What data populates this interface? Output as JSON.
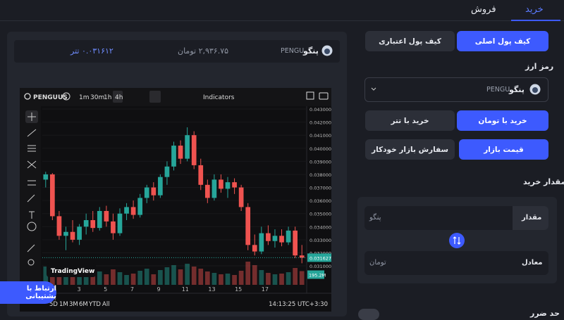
{
  "tabs": {
    "buy": "خرید",
    "sell": "فروش"
  },
  "market": {
    "symbol": "PENGU",
    "name": "پنگو",
    "price_toman": "۲,۹۳۶.۷۵ تومان",
    "price_tether": "۰.۰۳۱۶۱۲ تتر"
  },
  "chart": {
    "type": "candlestick",
    "ticker": "PENGUUS",
    "intervals": [
      "1m",
      "30m",
      "1h",
      "4h"
    ],
    "indicators": "Indicators",
    "brand": "TradingView",
    "ranges": [
      "5D",
      "1M",
      "3M",
      "6M",
      "YTD",
      "All"
    ],
    "clock": "14:13:25 UTC+3:30",
    "x_labels": [
      "3",
      "5",
      "7",
      "9",
      "11",
      "13",
      "15",
      "17"
    ],
    "ylim": [
      0.02955,
      0.04327
    ],
    "yticks": [
      {
        "value": 0.043,
        "label": "0.043000"
      },
      {
        "value": 0.042,
        "label": "0.042000"
      },
      {
        "value": 0.041,
        "label": "0.041000"
      },
      {
        "value": 0.04,
        "label": "0.040000"
      },
      {
        "value": 0.039,
        "label": "0.039000"
      },
      {
        "value": 0.038,
        "label": "0.038000"
      },
      {
        "value": 0.037,
        "label": "0.037000"
      },
      {
        "value": 0.036,
        "label": "0.036000"
      },
      {
        "value": 0.035,
        "label": "0.035000"
      },
      {
        "value": 0.034,
        "label": "0.034000"
      },
      {
        "value": 0.033,
        "label": "0.033000"
      },
      {
        "value": 0.032,
        "label": "0.032000"
      },
      {
        "value": 0.031,
        "label": "0.031000"
      }
    ],
    "up_color": "#26a69a",
    "down_color": "#ef5350",
    "candles": [
      [
        0.0376,
        0.0382,
        0.037,
        0.038
      ],
      [
        0.038,
        0.0381,
        0.0345,
        0.0348
      ],
      [
        0.0348,
        0.0352,
        0.033,
        0.0333
      ],
      [
        0.0333,
        0.034,
        0.0322,
        0.0336
      ],
      [
        0.0336,
        0.0345,
        0.0328,
        0.033
      ],
      [
        0.033,
        0.0342,
        0.0326,
        0.034
      ],
      [
        0.034,
        0.035,
        0.0334,
        0.0345
      ],
      [
        0.0345,
        0.0352,
        0.0336,
        0.0339
      ],
      [
        0.0339,
        0.0355,
        0.0337,
        0.0352
      ],
      [
        0.0352,
        0.0356,
        0.034,
        0.0344
      ],
      [
        0.0344,
        0.035,
        0.033,
        0.0335
      ],
      [
        0.0335,
        0.0354,
        0.0333,
        0.035
      ],
      [
        0.035,
        0.0358,
        0.0345,
        0.0355
      ],
      [
        0.0355,
        0.036,
        0.0346,
        0.0349
      ],
      [
        0.0349,
        0.0365,
        0.0347,
        0.0362
      ],
      [
        0.0362,
        0.0372,
        0.0358,
        0.037
      ],
      [
        0.037,
        0.0374,
        0.036,
        0.0364
      ],
      [
        0.0364,
        0.038,
        0.0362,
        0.0378
      ],
      [
        0.0378,
        0.039,
        0.0372,
        0.0386
      ],
      [
        0.0386,
        0.0405,
        0.0383,
        0.0402
      ],
      [
        0.0402,
        0.0406,
        0.0388,
        0.0392
      ],
      [
        0.0392,
        0.0416,
        0.039,
        0.041
      ],
      [
        0.041,
        0.0413,
        0.0384,
        0.0387
      ],
      [
        0.0387,
        0.0392,
        0.0368,
        0.0372
      ],
      [
        0.0372,
        0.0376,
        0.0358,
        0.0362
      ],
      [
        0.0362,
        0.038,
        0.036,
        0.0376
      ],
      [
        0.0376,
        0.038,
        0.0366,
        0.0369
      ],
      [
        0.0369,
        0.0378,
        0.0362,
        0.0374
      ],
      [
        0.0374,
        0.0377,
        0.0365,
        0.037
      ],
      [
        0.037,
        0.0372,
        0.0352,
        0.0355
      ],
      [
        0.0355,
        0.0358,
        0.0322,
        0.0326
      ],
      [
        0.0326,
        0.0334,
        0.0318,
        0.0321
      ],
      [
        0.0321,
        0.034,
        0.0319,
        0.0335
      ],
      [
        0.0335,
        0.0341,
        0.0326,
        0.0329
      ],
      [
        0.0329,
        0.0338,
        0.0324,
        0.0333
      ],
      [
        0.0333,
        0.0338,
        0.0325,
        0.0328
      ],
      [
        0.0328,
        0.034,
        0.0326,
        0.0337
      ],
      [
        0.0337,
        0.034,
        0.0316,
        0.0318
      ],
      [
        0.0318,
        0.0326,
        0.0312,
        0.031627
      ]
    ],
    "volume": [
      260,
      310,
      240,
      180,
      150,
      170,
      200,
      160,
      190,
      150,
      220,
      180,
      140,
      160,
      200,
      230,
      150,
      210,
      250,
      280,
      220,
      300,
      260,
      230,
      190,
      170,
      150,
      160,
      140,
      200,
      330,
      280,
      210,
      170,
      150,
      160,
      180,
      240,
      195.2
    ],
    "last_price": 0.031627,
    "last_volume": {
      "value": 195.2,
      "label": "195.2M"
    }
  },
  "wallet": {
    "main": "کیف پول اصلی",
    "credit": "کیف پول اعتباری"
  },
  "currency_label": "رمز ارز",
  "pay": {
    "toman": "خرید با تومان",
    "tether": "خرید با تتر"
  },
  "order": {
    "market": "قیمت بازار",
    "auto": "سفارش بازار خودکار"
  },
  "amount_title": "مقدار خرید",
  "amount": {
    "label": "مقدار",
    "placeholder": "پنگو"
  },
  "equivalent": {
    "label": "معادل",
    "placeholder": "تومان"
  },
  "stop_loss": "حد ضرر",
  "support": "ارتباط با پشتیبانی"
}
